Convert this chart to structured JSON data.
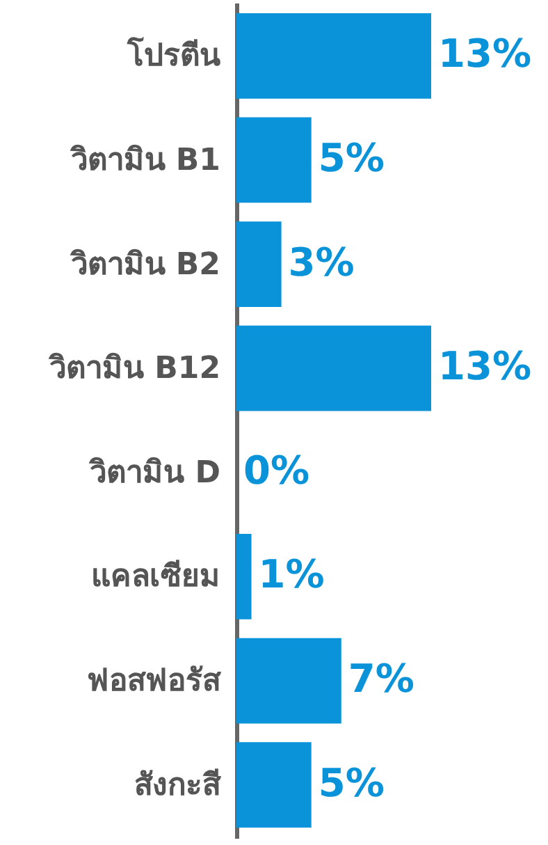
{
  "chart_data": {
    "type": "bar",
    "orientation": "horizontal",
    "categories": [
      "โปรตีน",
      "วิตามิน B1",
      "วิตามิน B2",
      "วิตามิน B12",
      "วิตามิน D",
      "แคลเซียม",
      "ฟอสฟอรัส",
      "สังกะสี"
    ],
    "values": [
      13,
      5,
      3,
      13,
      0,
      1,
      7,
      5
    ],
    "value_labels": [
      "13%",
      "5%",
      "3%",
      "13%",
      "0%",
      "1%",
      "7%",
      "5%"
    ],
    "color": "#0a93d8"
  }
}
